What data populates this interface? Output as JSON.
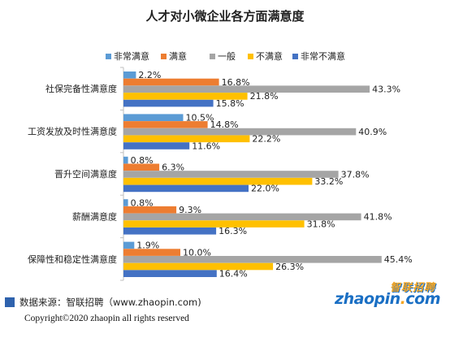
{
  "chart_data": {
    "type": "bar",
    "orientation": "horizontal",
    "title": "人才对小微企业各方面满意度",
    "categories": [
      "社保完备性满意度",
      "工资发放及时性满意度",
      "晋升空间满意度",
      "薪酬满意度",
      "保障性和稳定性满意度"
    ],
    "series": [
      {
        "name": "非常满意",
        "color": "#5b9bd5",
        "values": [
          2.2,
          10.5,
          0.8,
          0.8,
          1.9
        ],
        "labels": [
          "2.2%",
          "10.5%",
          "0.8%",
          "0.8%",
          "1.9%"
        ]
      },
      {
        "name": "满意",
        "color": "#ed7d31",
        "values": [
          16.8,
          14.8,
          6.3,
          9.3,
          10.0
        ],
        "labels": [
          "16.8%",
          "14.8%",
          "6.3%",
          "9.3%",
          "10.0%"
        ]
      },
      {
        "name": "一般",
        "color": "#a5a5a5",
        "values": [
          43.3,
          40.9,
          37.8,
          41.8,
          45.4
        ],
        "labels": [
          "43.3%",
          "40.9%",
          "37.8%",
          "41.8%",
          "45.4%"
        ]
      },
      {
        "name": "不满意",
        "color": "#ffc000",
        "values": [
          21.8,
          22.2,
          33.2,
          31.8,
          26.3
        ],
        "labels": [
          "21.8%",
          "22.2%",
          "33.2%",
          "31.8%",
          "26.3%"
        ]
      },
      {
        "name": "非常不满意",
        "color": "#4472c4",
        "values": [
          15.8,
          11.6,
          22.0,
          16.3,
          16.4
        ],
        "labels": [
          "15.8%",
          "11.6%",
          "22.0%",
          "16.3%",
          "16.4%"
        ]
      }
    ],
    "xlim": [
      0,
      50
    ],
    "grid": false,
    "legend_position": "top"
  },
  "footer": {
    "source": "数据来源：智联招聘（www.zhaopin.com)",
    "copyright": "Copyright©2020 zhaopin all rights reserved"
  },
  "logo": {
    "cn": "智联招聘",
    "en_main": "zhaopin",
    "en_dot": ".",
    "en_tail": "com"
  }
}
